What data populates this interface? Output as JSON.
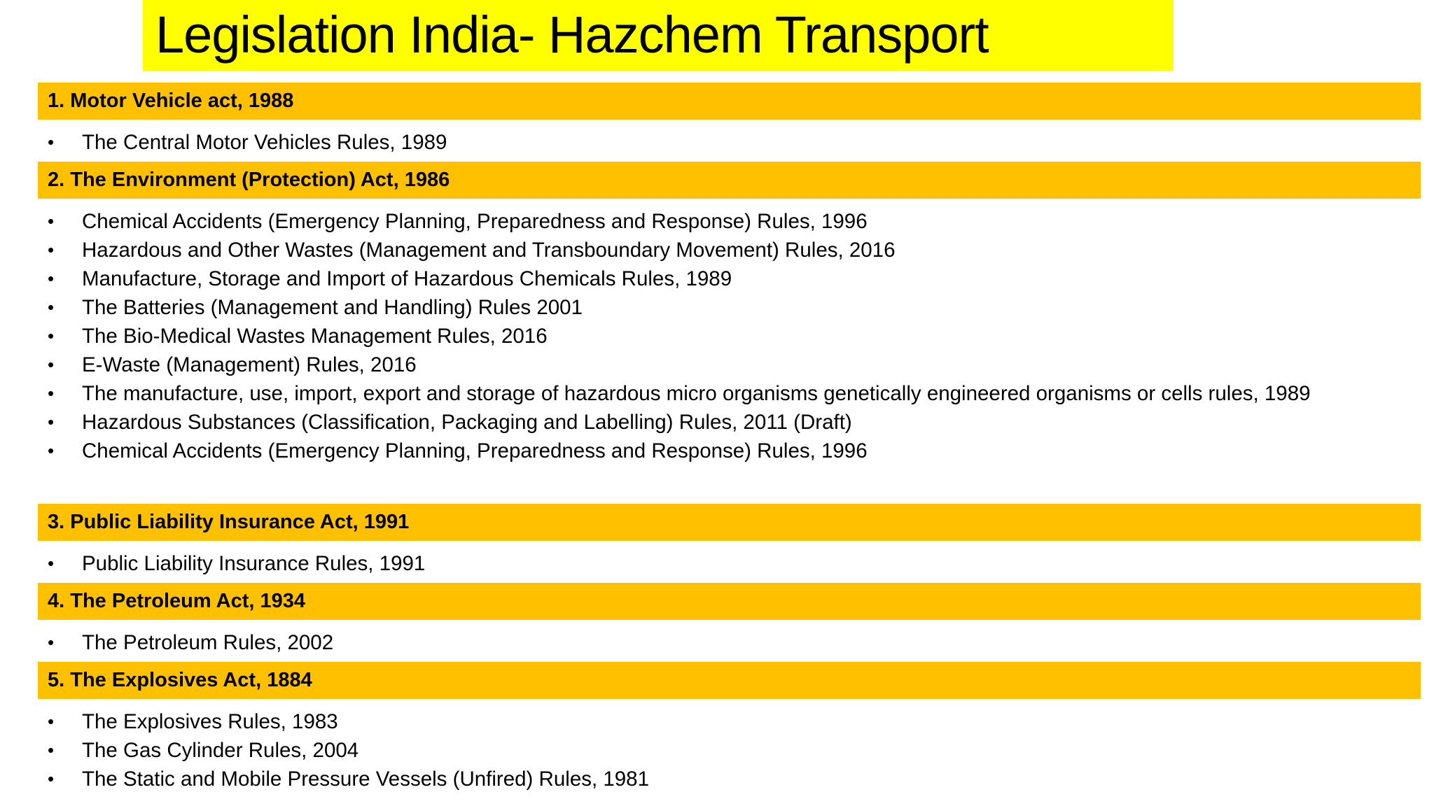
{
  "title": "Legislation India- Hazchem Transport",
  "colors": {
    "title_background": "#ffff00",
    "section_background": "#ffc000",
    "text": "#000000"
  },
  "bullet_glyph": "•",
  "sections": [
    {
      "heading": "1. Motor Vehicle act, 1988",
      "items": [
        "The Central Motor Vehicles Rules, 1989"
      ]
    },
    {
      "heading": "2. The Environment (Protection) Act, 1986",
      "items": [
        "Chemical Accidents (Emergency Planning, Preparedness and Response) Rules, 1996",
        "Hazardous and Other Wastes (Management and Transboundary Movement) Rules, 2016",
        "Manufacture, Storage and Import of Hazardous Chemicals Rules, 1989",
        "The Batteries (Management and Handling) Rules 2001",
        "The Bio-Medical Wastes Management Rules, 2016",
        "E-Waste (Management) Rules, 2016",
        "The manufacture, use, import, export and storage of hazardous micro organisms genetically engineered organisms or cells rules, 1989",
        "Hazardous Substances (Classification, Packaging and Labelling) Rules, 2011 (Draft)",
        "Chemical Accidents (Emergency Planning, Preparedness and Response) Rules, 1996"
      ]
    },
    {
      "heading": "3. Public Liability Insurance Act, 1991",
      "items": [
        "Public Liability Insurance Rules, 1991"
      ]
    },
    {
      "heading": "4. The Petroleum Act, 1934",
      "items": [
        "The Petroleum Rules, 2002"
      ]
    },
    {
      "heading": "5. The Explosives Act, 1884",
      "items": [
        "The Explosives Rules, 1983",
        "The Gas Cylinder Rules, 2004",
        "The Static and Mobile Pressure Vessels (Unfired) Rules, 1981"
      ]
    }
  ]
}
